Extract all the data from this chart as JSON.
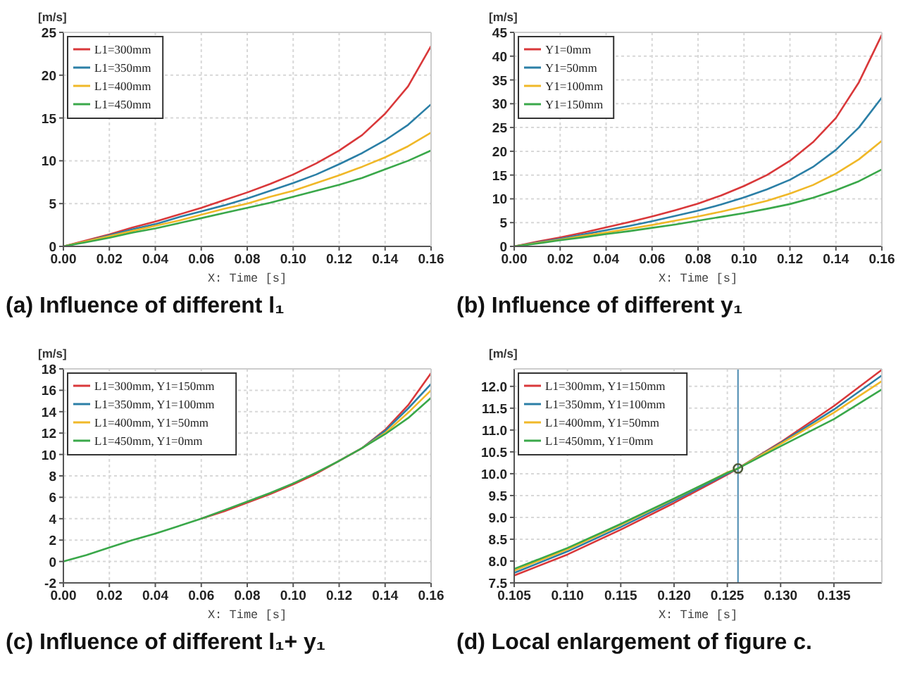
{
  "chart_data": [
    {
      "type": "line",
      "title": "(a)  Influence of different l₁",
      "xlabel": "X: Time [s]",
      "ylabel": "[m/s]",
      "xlim": [
        0,
        0.16
      ],
      "xticks": [
        {
          "value": 0,
          "label": "0.00"
        },
        {
          "value": 0.02,
          "label": "0.02"
        },
        {
          "value": 0.04,
          "label": "0.04"
        },
        {
          "value": 0.06,
          "label": "0.06"
        },
        {
          "value": 0.08,
          "label": "0.08"
        },
        {
          "value": 0.1,
          "label": "0.10"
        },
        {
          "value": 0.12,
          "label": "0.12"
        },
        {
          "value": 0.14,
          "label": "0.14"
        },
        {
          "value": 0.16,
          "label": "0.16"
        }
      ],
      "ylim": [
        0,
        25
      ],
      "yticks": [
        0,
        5,
        10,
        15,
        20,
        25
      ],
      "grid": true,
      "legend": "top left",
      "x": [
        0,
        0.01,
        0.02,
        0.03,
        0.04,
        0.05,
        0.06,
        0.07,
        0.08,
        0.09,
        0.1,
        0.11,
        0.12,
        0.13,
        0.14,
        0.15,
        0.16
      ],
      "series": [
        {
          "name": "L1=300mm",
          "color": "#d9383a",
          "values": [
            0,
            0.7,
            1.4,
            2.2,
            2.9,
            3.7,
            4.5,
            5.4,
            6.3,
            7.3,
            8.4,
            9.7,
            11.2,
            13.0,
            15.5,
            18.7,
            23.4
          ]
        },
        {
          "name": "L1=350mm",
          "color": "#2b7fa6",
          "values": [
            0,
            0.6,
            1.3,
            2.0,
            2.6,
            3.4,
            4.1,
            4.8,
            5.6,
            6.5,
            7.4,
            8.4,
            9.6,
            10.9,
            12.4,
            14.2,
            16.6
          ]
        },
        {
          "name": "L1=400mm",
          "color": "#f0b828",
          "values": [
            0,
            0.6,
            1.2,
            1.8,
            2.4,
            3.0,
            3.7,
            4.4,
            5.0,
            5.8,
            6.5,
            7.4,
            8.3,
            9.3,
            10.4,
            11.7,
            13.3
          ]
        },
        {
          "name": "L1=450mm",
          "color": "#3aa84a",
          "values": [
            0,
            0.5,
            1.0,
            1.6,
            2.1,
            2.7,
            3.3,
            3.9,
            4.5,
            5.1,
            5.8,
            6.5,
            7.2,
            8.0,
            9.0,
            10.0,
            11.2
          ]
        }
      ]
    },
    {
      "type": "line",
      "title": "(b)  Influence of different y₁",
      "xlabel": "X: Time [s]",
      "ylabel": "[m/s]",
      "xlim": [
        0,
        0.16
      ],
      "xticks": [
        {
          "value": 0,
          "label": "0.00"
        },
        {
          "value": 0.02,
          "label": "0.02"
        },
        {
          "value": 0.04,
          "label": "0.04"
        },
        {
          "value": 0.06,
          "label": "0.06"
        },
        {
          "value": 0.08,
          "label": "0.08"
        },
        {
          "value": 0.1,
          "label": "0.10"
        },
        {
          "value": 0.12,
          "label": "0.12"
        },
        {
          "value": 0.14,
          "label": "0.14"
        },
        {
          "value": 0.16,
          "label": "0.16"
        }
      ],
      "ylim": [
        0,
        45
      ],
      "yticks": [
        0,
        5,
        10,
        15,
        20,
        25,
        30,
        35,
        40,
        45
      ],
      "grid": true,
      "legend": "top left",
      "x": [
        0,
        0.01,
        0.02,
        0.03,
        0.04,
        0.05,
        0.06,
        0.07,
        0.08,
        0.09,
        0.1,
        0.11,
        0.12,
        0.13,
        0.14,
        0.15,
        0.16
      ],
      "series": [
        {
          "name": "Y1=0mm",
          "color": "#d9383a",
          "values": [
            0,
            1,
            1.9,
            2.9,
            4.0,
            5.1,
            6.3,
            7.6,
            9.0,
            10.7,
            12.7,
            15.0,
            18.0,
            21.9,
            27,
            34.5,
            44.5
          ]
        },
        {
          "name": "Y1=50mm",
          "color": "#2b7fa6",
          "values": [
            0,
            0.8,
            1.6,
            2.5,
            3.4,
            4.3,
            5.3,
            6.4,
            7.5,
            8.8,
            10.3,
            12.0,
            14.0,
            16.7,
            20.3,
            25,
            31.3
          ]
        },
        {
          "name": "Y1=100mm",
          "color": "#f0b828",
          "values": [
            0,
            0.7,
            1.4,
            2.2,
            2.9,
            3.7,
            4.5,
            5.4,
            6.3,
            7.3,
            8.4,
            9.6,
            11.1,
            12.9,
            15.3,
            18.3,
            22.2
          ]
        },
        {
          "name": "Y1=150mm",
          "color": "#3aa84a",
          "values": [
            0,
            0.6,
            1.3,
            1.9,
            2.6,
            3.2,
            3.9,
            4.6,
            5.4,
            6.2,
            7.0,
            7.9,
            8.9,
            10.2,
            11.8,
            13.7,
            16.2
          ]
        }
      ]
    },
    {
      "type": "line",
      "title": "(c)  Influence of different l₁+ y₁",
      "xlabel": "X: Time [s]",
      "ylabel": "[m/s]",
      "xlim": [
        0,
        0.16
      ],
      "xticks": [
        {
          "value": 0,
          "label": "0.00"
        },
        {
          "value": 0.02,
          "label": "0.02"
        },
        {
          "value": 0.04,
          "label": "0.04"
        },
        {
          "value": 0.06,
          "label": "0.06"
        },
        {
          "value": 0.08,
          "label": "0.08"
        },
        {
          "value": 0.1,
          "label": "0.10"
        },
        {
          "value": 0.12,
          "label": "0.12"
        },
        {
          "value": 0.14,
          "label": "0.14"
        },
        {
          "value": 0.16,
          "label": "0.16"
        }
      ],
      "ylim": [
        -2,
        18
      ],
      "yticks": [
        -2,
        0,
        2,
        4,
        6,
        8,
        10,
        12,
        14,
        16,
        18
      ],
      "grid": true,
      "legend": "top left",
      "x": [
        0,
        0.01,
        0.02,
        0.03,
        0.04,
        0.05,
        0.06,
        0.07,
        0.08,
        0.09,
        0.1,
        0.11,
        0.12,
        0.13,
        0.14,
        0.15,
        0.16
      ],
      "series": [
        {
          "name": "L1=300mm, Y1=150mm",
          "color": "#d9383a",
          "values": [
            null,
            null,
            null,
            null,
            null,
            null,
            4.0,
            4.7,
            5.5,
            6.3,
            7.2,
            8.2,
            9.4,
            10.6,
            12.3,
            14.6,
            17.6
          ]
        },
        {
          "name": "L1=350mm, Y1=100mm",
          "color": "#2b7fa6",
          "values": [
            null,
            null,
            null,
            null,
            null,
            null,
            null,
            null,
            null,
            null,
            null,
            null,
            null,
            10.6,
            12.2,
            14.3,
            16.6
          ]
        },
        {
          "name": "L1=400mm, Y1=50mm",
          "color": "#f0b828",
          "values": [
            null,
            null,
            null,
            null,
            null,
            null,
            null,
            null,
            null,
            null,
            null,
            null,
            null,
            10.6,
            12.0,
            13.9,
            16.0
          ]
        },
        {
          "name": "L1=450mm, Y1=0mm",
          "color": "#3aa84a",
          "values": [
            0,
            0.6,
            1.3,
            2.0,
            2.6,
            3.3,
            4.0,
            4.8,
            5.6,
            6.4,
            7.3,
            8.3,
            9.4,
            10.6,
            11.9,
            13.4,
            15.3
          ]
        }
      ]
    },
    {
      "type": "line",
      "title": "(d)  Local enlargement of figure c.",
      "xlabel": "X: Time [s]",
      "ylabel": "[m/s]",
      "xlim": [
        0.105,
        0.1395
      ],
      "xticks": [
        0.105,
        {
          "value": 0.11,
          "label": "0.110"
        },
        0.115,
        {
          "value": 0.12,
          "label": "0.120"
        },
        0.125,
        {
          "value": 0.13,
          "label": "0.130"
        },
        0.135
      ],
      "ylim": [
        7.5,
        12.4
      ],
      "yticks": [
        7.5,
        {
          "value": 8,
          "label": "8.0"
        },
        8.5,
        {
          "value": 9,
          "label": "9.0"
        },
        9.5,
        {
          "value": 10,
          "label": "10.0"
        },
        10.5,
        {
          "value": 11,
          "label": "11.0"
        },
        11.5,
        {
          "value": 12,
          "label": "12.0"
        }
      ],
      "grid": true,
      "legend": "top left",
      "x": [
        0.105,
        0.11,
        0.115,
        0.12,
        0.125,
        0.126,
        0.13,
        0.135,
        0.1395
      ],
      "ref_lines": [
        {
          "axis": "x",
          "value": 0.126,
          "color": "#4a8ab0"
        }
      ],
      "series": [
        {
          "name": "L1=300mm, Y1=150mm",
          "color": "#d9383a",
          "values": [
            7.67,
            8.15,
            8.72,
            9.33,
            9.98,
            10.12,
            10.72,
            11.55,
            12.38
          ]
        },
        {
          "name": "L1=350mm, Y1=100mm",
          "color": "#2b7fa6",
          "values": [
            7.73,
            8.22,
            8.78,
            9.38,
            10.0,
            10.12,
            10.7,
            11.47,
            12.25
          ]
        },
        {
          "name": "L1=400mm, Y1=50mm",
          "color": "#f0b828",
          "values": [
            7.78,
            8.27,
            8.83,
            9.42,
            10.03,
            10.12,
            10.68,
            11.4,
            12.12
          ]
        },
        {
          "name": "L1=450mm, Y1=0mm",
          "color": "#3aa84a",
          "values": [
            7.82,
            8.3,
            8.85,
            9.43,
            10.02,
            10.12,
            10.63,
            11.25,
            11.93
          ]
        },
        {
          "type": "scatter",
          "marker": "circle",
          "color": "#4d5a3a",
          "x": [
            0.126
          ],
          "values": [
            10.12
          ]
        }
      ]
    }
  ]
}
